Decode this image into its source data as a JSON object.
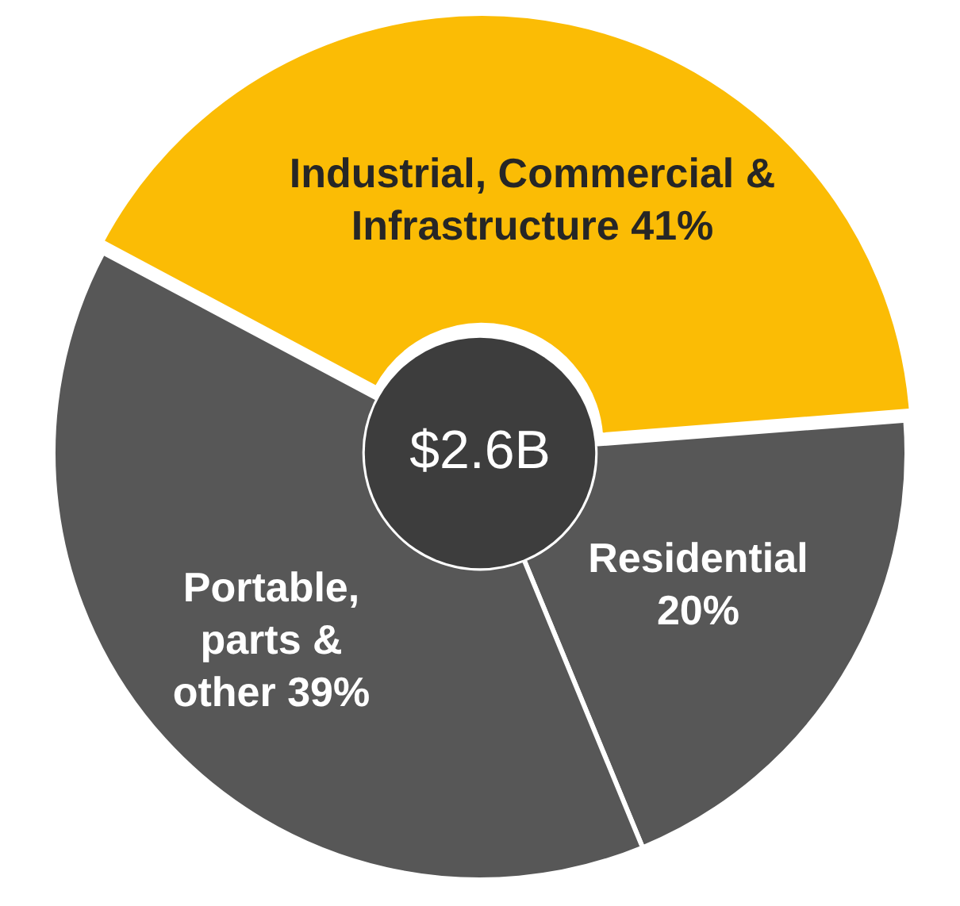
{
  "chart_data": {
    "type": "donut",
    "categories": [
      "Industrial, Commercial & Infrastructure",
      "Residential",
      "Portable, parts & other"
    ],
    "values": [
      41,
      20,
      39
    ],
    "value_labels": [
      "41%",
      "20%",
      "39%"
    ],
    "colors": [
      "#fbbc05",
      "#575757",
      "#575757"
    ],
    "annotations": [
      "$2.6B"
    ]
  }
}
